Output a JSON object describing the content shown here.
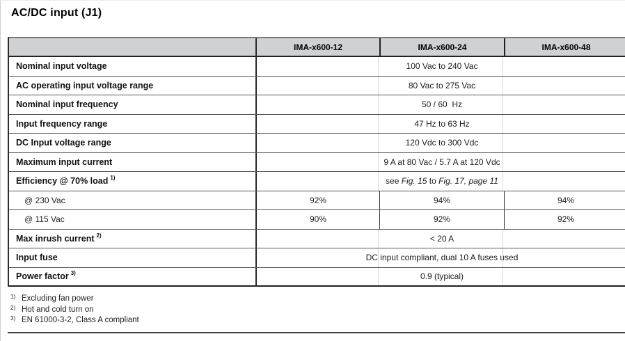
{
  "page": {
    "title": "AC/DC input (J1)"
  },
  "colors": {
    "header_bg": "#d0d1d3",
    "border_dark": "#222222",
    "border_row": "#555555",
    "faint_span_divider": "#d8d8d8"
  },
  "table": {
    "col_headers": [
      "IMA-x600-12",
      "IMA-x600-24",
      "IMA-x600-48"
    ],
    "rows": [
      {
        "label": "Nominal input voltage",
        "value": "100 Vac to 240 Vac"
      },
      {
        "label": "AC operating input voltage range",
        "value": "80 Vac to 275 Vac"
      },
      {
        "label": "Nominal input frequency",
        "value": "50 / 60  Hz"
      },
      {
        "label": "Input frequency range",
        "value": "47 Hz to 63 Hz"
      },
      {
        "label": "DC Input voltage range",
        "value": "120 Vdc to 300 Vdc"
      },
      {
        "label": "Maximum input current",
        "value": "9 A at 80 Vac / 5.7 A at 120 Vdc"
      },
      {
        "label": "Efficiency @ 70% load",
        "sup": "1)",
        "value_parts": {
          "prefix": "see ",
          "fig_start": "Fig. 15",
          "connector": " to ",
          "fig_end": "Fig. 17, page 11"
        }
      },
      {
        "label": "@ 230 Vac",
        "values": [
          "92%",
          "94%",
          "94%"
        ]
      },
      {
        "label": "@ 115 Vac",
        "values": [
          "90%",
          "92%",
          "92%"
        ]
      },
      {
        "label": "Max inrush current",
        "sup": "2)",
        "value": "< 20 A"
      },
      {
        "label": "Input fuse",
        "value": "DC input compliant, dual 10 A fuses used"
      },
      {
        "label": "Power factor",
        "sup": "3)",
        "value": "0.9 (typical)"
      }
    ]
  },
  "footnotes": [
    {
      "marker": "1)",
      "text": "Excluding fan power"
    },
    {
      "marker": "2)",
      "text": "Hot and cold turn on"
    },
    {
      "marker": "3)",
      "text": "EN 61000-3-2, Class A compliant"
    }
  ]
}
